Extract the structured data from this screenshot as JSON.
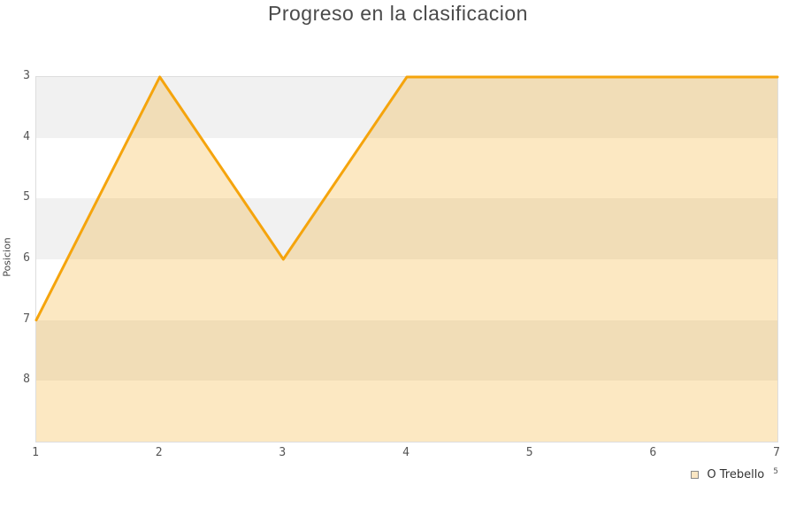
{
  "title": "Progreso en la clasificacion",
  "axes": {
    "y_label": "Posicion",
    "y_ticks": [
      "3",
      "4",
      "5",
      "6",
      "7",
      "8"
    ],
    "x_ticks": [
      "1",
      "2",
      "3",
      "4",
      "5",
      "6",
      "7"
    ]
  },
  "legend": {
    "label": "O Trebello",
    "superscript": "5"
  },
  "colors": {
    "line": "#F5A40C",
    "fill_alpha": 0.25,
    "stripe": "#F1F1F1",
    "stripe_alt": "#FFFFFF",
    "plot_border": "#DDDDDD",
    "title_text": "#4A4A4A",
    "tick_text": "#555555",
    "legend_swatch_fill": "#FAE6C3",
    "legend_swatch_border": "#8A8A8A"
  },
  "chart_data": {
    "type": "area",
    "title": "Progreso en la clasificacion",
    "xlabel": "",
    "ylabel": "Posicion",
    "x": [
      1,
      2,
      3,
      4,
      5,
      6,
      7
    ],
    "series": [
      {
        "name": "O Trebello",
        "values": [
          7,
          3,
          6,
          3,
          3,
          3,
          3
        ]
      }
    ],
    "xlim": [
      1,
      7
    ],
    "ylim": [
      3,
      9
    ],
    "y_axis_inverted": true,
    "y_tick_values": [
      3,
      4,
      5,
      6,
      7,
      8
    ],
    "grid": "horizontal-stripes",
    "legend_position": "bottom-right"
  }
}
